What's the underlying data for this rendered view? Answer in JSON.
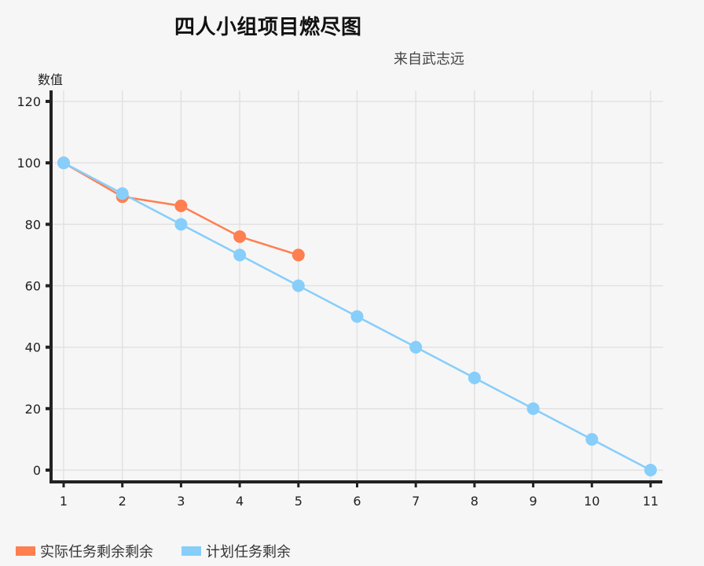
{
  "chart_data": {
    "type": "line",
    "title": "四人小组项目燃尽图",
    "subtitle": "来自武志远",
    "xlabel": "",
    "ylabel": "数值",
    "x": [
      1,
      2,
      3,
      4,
      5,
      6,
      7,
      8,
      9,
      10,
      11
    ],
    "ylim": [
      0,
      120
    ],
    "yticks": [
      0,
      20,
      40,
      60,
      80,
      100,
      120
    ],
    "grid": true,
    "legend_position": "bottom-left",
    "series": [
      {
        "name": "实际任务剩余剩余",
        "color": "#FF7F50",
        "x": [
          1,
          2,
          3,
          4,
          5
        ],
        "values": [
          100,
          89,
          86,
          76,
          70
        ]
      },
      {
        "name": "计划任务剩余",
        "color": "#87CEFA",
        "x": [
          1,
          2,
          3,
          4,
          5,
          6,
          7,
          8,
          9,
          10,
          11
        ],
        "values": [
          100,
          90,
          80,
          70,
          60,
          50,
          40,
          30,
          20,
          10,
          0
        ]
      }
    ]
  }
}
